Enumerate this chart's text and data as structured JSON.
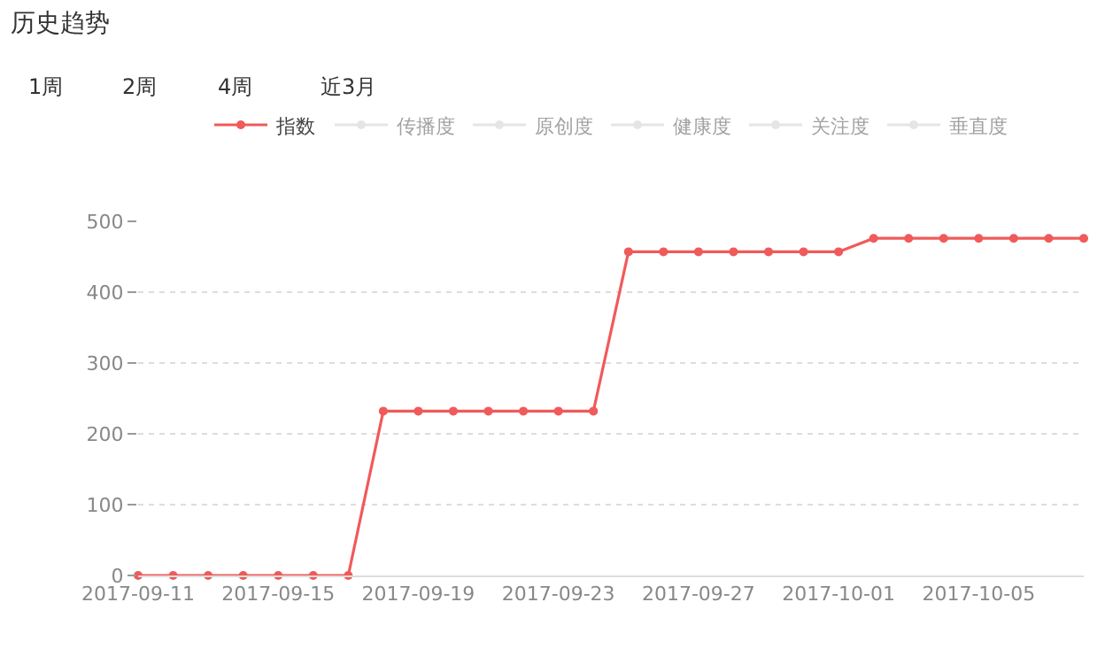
{
  "chart_data": {
    "type": "line",
    "title": "历史趋势",
    "annotations": [
      "1周",
      "2周",
      "4周",
      "近3月"
    ],
    "x": [
      "2017-09-11",
      "2017-09-12",
      "2017-09-13",
      "2017-09-14",
      "2017-09-15",
      "2017-09-16",
      "2017-09-17",
      "2017-09-18",
      "2017-09-19",
      "2017-09-20",
      "2017-09-21",
      "2017-09-22",
      "2017-09-23",
      "2017-09-24",
      "2017-09-25",
      "2017-09-26",
      "2017-09-27",
      "2017-09-28",
      "2017-09-29",
      "2017-09-30",
      "2017-10-01",
      "2017-10-02",
      "2017-10-03",
      "2017-10-04",
      "2017-10-05",
      "2017-10-06",
      "2017-10-07",
      "2017-10-08"
    ],
    "series": [
      {
        "name": "指数",
        "color": "#f05a5a",
        "values": [
          0,
          0,
          0,
          0,
          0,
          0,
          0,
          232,
          232,
          232,
          232,
          232,
          232,
          232,
          457,
          457,
          457,
          457,
          457,
          457,
          457,
          476,
          476,
          476,
          476,
          476,
          476,
          476
        ]
      },
      {
        "name": "传播度",
        "color": "#cccccc",
        "values": [
          null,
          null,
          null,
          null,
          null,
          null,
          null,
          null,
          null,
          null,
          null,
          null,
          null,
          null,
          null,
          null,
          null,
          null,
          null,
          null,
          null,
          null,
          null,
          null,
          null,
          null,
          null,
          null
        ]
      },
      {
        "name": "原创度",
        "color": "#cccccc",
        "values": [
          null,
          null,
          null,
          null,
          null,
          null,
          null,
          null,
          null,
          null,
          null,
          null,
          null,
          null,
          null,
          null,
          null,
          null,
          null,
          null,
          null,
          null,
          null,
          null,
          null,
          null,
          null,
          null
        ]
      },
      {
        "name": "健康度",
        "color": "#cccccc",
        "values": [
          null,
          null,
          null,
          null,
          null,
          null,
          null,
          null,
          null,
          null,
          null,
          null,
          null,
          null,
          null,
          null,
          null,
          null,
          null,
          null,
          null,
          null,
          null,
          null,
          null,
          null,
          null,
          null
        ]
      },
      {
        "name": "关注度",
        "color": "#cccccc",
        "values": [
          null,
          null,
          null,
          null,
          null,
          null,
          null,
          null,
          null,
          null,
          null,
          null,
          null,
          null,
          null,
          null,
          null,
          null,
          null,
          null,
          null,
          null,
          null,
          null,
          null,
          null,
          null,
          null
        ]
      },
      {
        "name": "垂直度",
        "color": "#cccccc",
        "values": [
          null,
          null,
          null,
          null,
          null,
          null,
          null,
          null,
          null,
          null,
          null,
          null,
          null,
          null,
          null,
          null,
          null,
          null,
          null,
          null,
          null,
          null,
          null,
          null,
          null,
          null,
          null,
          null
        ]
      }
    ],
    "xlim": [
      "2017-09-11",
      "2017-10-08"
    ],
    "xticks": [
      "2017-09-11",
      "2017-09-15",
      "2017-09-19",
      "2017-09-23",
      "2017-09-27",
      "2017-10-01",
      "2017-10-05"
    ],
    "ylim": [
      0,
      500
    ],
    "yticks": [
      0,
      100,
      200,
      300,
      400,
      500
    ],
    "grid": "y",
    "legend": "top",
    "marker": "circle",
    "line_style": "solid"
  }
}
